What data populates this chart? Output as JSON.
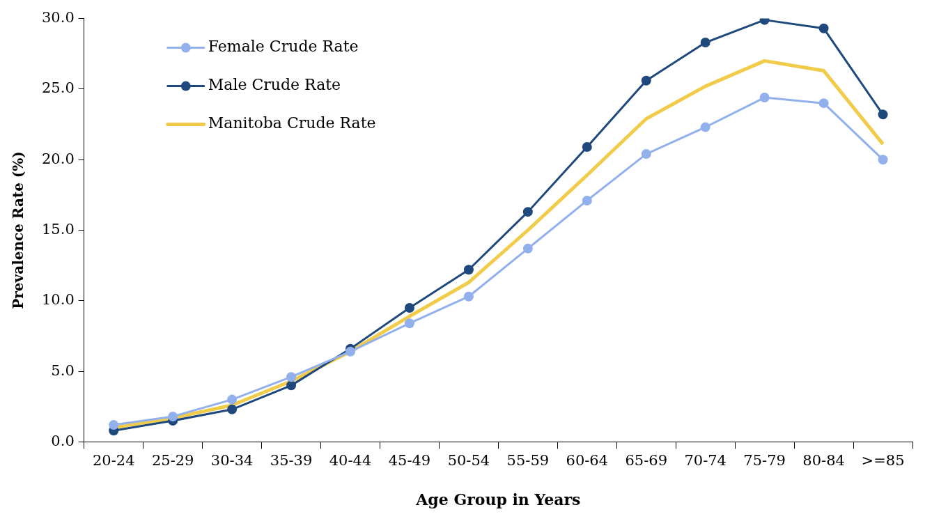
{
  "chart_data": {
    "type": "line",
    "xlabel": "Age Group in Years",
    "ylabel": "Prevalence Rate (%)",
    "categories": [
      "20-24",
      "25-29",
      "30-34",
      "35-39",
      "40-44",
      "45-49",
      "50-54",
      "55-59",
      "60-64",
      "65-69",
      "70-74",
      "75-79",
      "80-84",
      ">=85"
    ],
    "ylim": [
      0,
      30
    ],
    "yticks": [
      {
        "value": 0,
        "label": "0.0"
      },
      {
        "value": 5,
        "label": "5.0"
      },
      {
        "value": 10,
        "label": "10.0"
      },
      {
        "value": 15,
        "label": "15.0"
      },
      {
        "value": 20,
        "label": "20.0"
      },
      {
        "value": 25,
        "label": "25.0"
      },
      {
        "value": 30,
        "label": "30.0"
      }
    ],
    "grid": false,
    "legend": "top left",
    "series": [
      {
        "name": "Female Crude Rate",
        "color": "#92b0ec",
        "marker": "circle",
        "values": [
          1.2,
          1.8,
          3.0,
          4.6,
          6.4,
          8.4,
          10.3,
          13.7,
          17.1,
          20.4,
          22.3,
          24.4,
          24.0,
          20.0
        ]
      },
      {
        "name": "Male Crude Rate",
        "color": "#1f497d",
        "marker": "circle",
        "values": [
          0.8,
          1.5,
          2.3,
          4.0,
          6.6,
          9.5,
          12.2,
          16.3,
          20.9,
          25.6,
          28.3,
          29.9,
          29.3,
          23.2
        ]
      },
      {
        "name": "Manitoba Crude Rate",
        "color": "#f0cc4a",
        "marker": "none",
        "values": [
          1.0,
          1.7,
          2.6,
          4.3,
          6.4,
          8.9,
          11.3,
          15.0,
          18.9,
          22.9,
          25.2,
          27.0,
          26.3,
          21.1
        ]
      }
    ]
  }
}
